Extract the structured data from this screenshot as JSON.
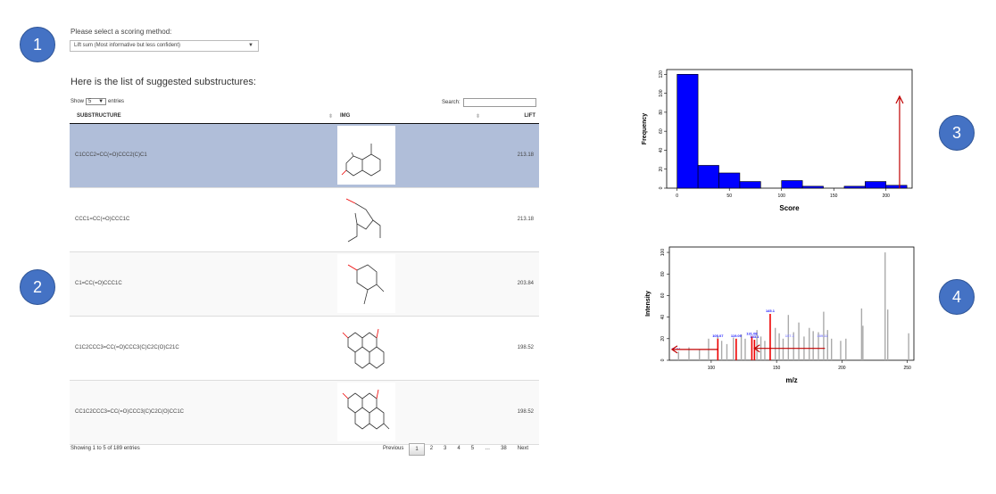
{
  "badges": {
    "b1": "1",
    "b2": "2",
    "b3": "3",
    "b4": "4"
  },
  "scoring": {
    "label": "Please select a scoring method:",
    "selected": "Lift sum (Most informative but less confident)"
  },
  "list": {
    "title": "Here is the list of suggested substructures:",
    "show_prefix": "Show",
    "show_value": "5",
    "show_suffix": "entries",
    "search_label": "Search:",
    "columns": [
      "SUBSTRUCTURE",
      "IMG",
      "LIFT"
    ],
    "rows": [
      {
        "smiles": "C1CCC2=CC(=O)CCC2(C)C1",
        "lift": "213.18"
      },
      {
        "smiles": "CCC1=CC(=O)CCC1C",
        "lift": "213.18"
      },
      {
        "smiles": "C1=CC(=O)CCC1C",
        "lift": "203.84"
      },
      {
        "smiles": "C1C2CCC3=CC(=O)CCC3(C)C2C(O)C21C",
        "lift": "198.52"
      },
      {
        "smiles": "CC1C2CCC3=CC(=O)CCC3(C)C2C(O)CC1C",
        "lift": "198.52"
      }
    ],
    "info": "Showing 1 to 5 of 189 entries",
    "pager": [
      "Previous",
      "1",
      "2",
      "3",
      "4",
      "5",
      "…",
      "38",
      "Next"
    ]
  },
  "colors": {
    "accent": "#4472c4",
    "selected_row": "#b0bed9",
    "histogram": "#0000ff",
    "arrow": "#c00000"
  },
  "chart_data": [
    {
      "type": "bar",
      "xlabel": "Score",
      "ylabel": "Frequency",
      "xticks": [
        "0",
        "50",
        "100",
        "150",
        "200"
      ],
      "yticks": [
        "0",
        "20",
        "40",
        "60",
        "80",
        "100",
        "120"
      ],
      "bins": [
        {
          "x0": 0,
          "x1": 20,
          "y": 120
        },
        {
          "x0": 20,
          "x1": 40,
          "y": 24
        },
        {
          "x0": 40,
          "x1": 60,
          "y": 16
        },
        {
          "x0": 60,
          "x1": 80,
          "y": 7
        },
        {
          "x0": 80,
          "x1": 100,
          "y": 0
        },
        {
          "x0": 100,
          "x1": 120,
          "y": 8
        },
        {
          "x0": 120,
          "x1": 140,
          "y": 2
        },
        {
          "x0": 140,
          "x1": 160,
          "y": 0
        },
        {
          "x0": 160,
          "x1": 180,
          "y": 2
        },
        {
          "x0": 180,
          "x1": 200,
          "y": 7
        },
        {
          "x0": 200,
          "x1": 220,
          "y": 3
        }
      ],
      "xlim": [
        -10,
        225
      ],
      "ylim": [
        0,
        125
      ],
      "marker_x": 213
    },
    {
      "type": "bar",
      "xlabel": "m/z",
      "ylabel": "Intensity",
      "xticks": [
        "100",
        "150",
        "200",
        "250"
      ],
      "yticks": [
        "0",
        "20",
        "40",
        "60",
        "80",
        "100"
      ],
      "xlim": [
        68,
        255
      ],
      "ylim": [
        0,
        105
      ],
      "peaks_gray": [
        {
          "x": 75,
          "y": 8
        },
        {
          "x": 83,
          "y": 12
        },
        {
          "x": 91,
          "y": 10
        },
        {
          "x": 98,
          "y": 20
        },
        {
          "x": 105,
          "y": 22
        },
        {
          "x": 108,
          "y": 18
        },
        {
          "x": 112,
          "y": 15
        },
        {
          "x": 117,
          "y": 21
        },
        {
          "x": 123,
          "y": 24
        },
        {
          "x": 126,
          "y": 20
        },
        {
          "x": 135,
          "y": 28
        },
        {
          "x": 138,
          "y": 22
        },
        {
          "x": 141,
          "y": 18
        },
        {
          "x": 149,
          "y": 30
        },
        {
          "x": 152,
          "y": 25
        },
        {
          "x": 155,
          "y": 20
        },
        {
          "x": 159,
          "y": 42
        },
        {
          "x": 163,
          "y": 26
        },
        {
          "x": 167,
          "y": 35
        },
        {
          "x": 171,
          "y": 22
        },
        {
          "x": 175,
          "y": 30
        },
        {
          "x": 178,
          "y": 27
        },
        {
          "x": 182,
          "y": 26
        },
        {
          "x": 186,
          "y": 45
        },
        {
          "x": 189,
          "y": 28
        },
        {
          "x": 192,
          "y": 20
        },
        {
          "x": 199,
          "y": 18
        },
        {
          "x": 203,
          "y": 20
        },
        {
          "x": 215,
          "y": 48
        },
        {
          "x": 216,
          "y": 32
        },
        {
          "x": 233,
          "y": 100
        },
        {
          "x": 235,
          "y": 47
        },
        {
          "x": 251,
          "y": 25
        }
      ],
      "peaks_red": [
        {
          "x": 105.07,
          "y": 20
        },
        {
          "x": 119.09,
          "y": 20
        },
        {
          "x": 131.08,
          "y": 22
        },
        {
          "x": 133.1,
          "y": 19
        },
        {
          "x": 145.1,
          "y": 43
        }
      ],
      "labels": [
        {
          "x": 105.07,
          "y": 20,
          "text": "105.07",
          "color": "#1a1aff"
        },
        {
          "x": 119.09,
          "y": 20,
          "text": "119.09",
          "color": "#1a1aff"
        },
        {
          "x": 131.08,
          "y": 22,
          "text": "131.08",
          "color": "#1a1aff"
        },
        {
          "x": 133.1,
          "y": 19,
          "text": "133.1",
          "color": "#1a1aff"
        },
        {
          "x": 145.1,
          "y": 43,
          "text": "145.1",
          "color": "#1a1aff"
        },
        {
          "x": 160,
          "y": 20,
          "text": "157.1",
          "color": "#8888ff"
        },
        {
          "x": 185,
          "y": 20,
          "text": "189.11",
          "color": "#8888ff"
        },
        {
          "x": 73,
          "y": 8,
          "text": "77.04",
          "color": "#8888ff"
        }
      ],
      "arrows": [
        {
          "from": 105.07,
          "to": 70,
          "y": 10
        },
        {
          "from": 187,
          "to": 133,
          "y": 11
        }
      ]
    }
  ]
}
